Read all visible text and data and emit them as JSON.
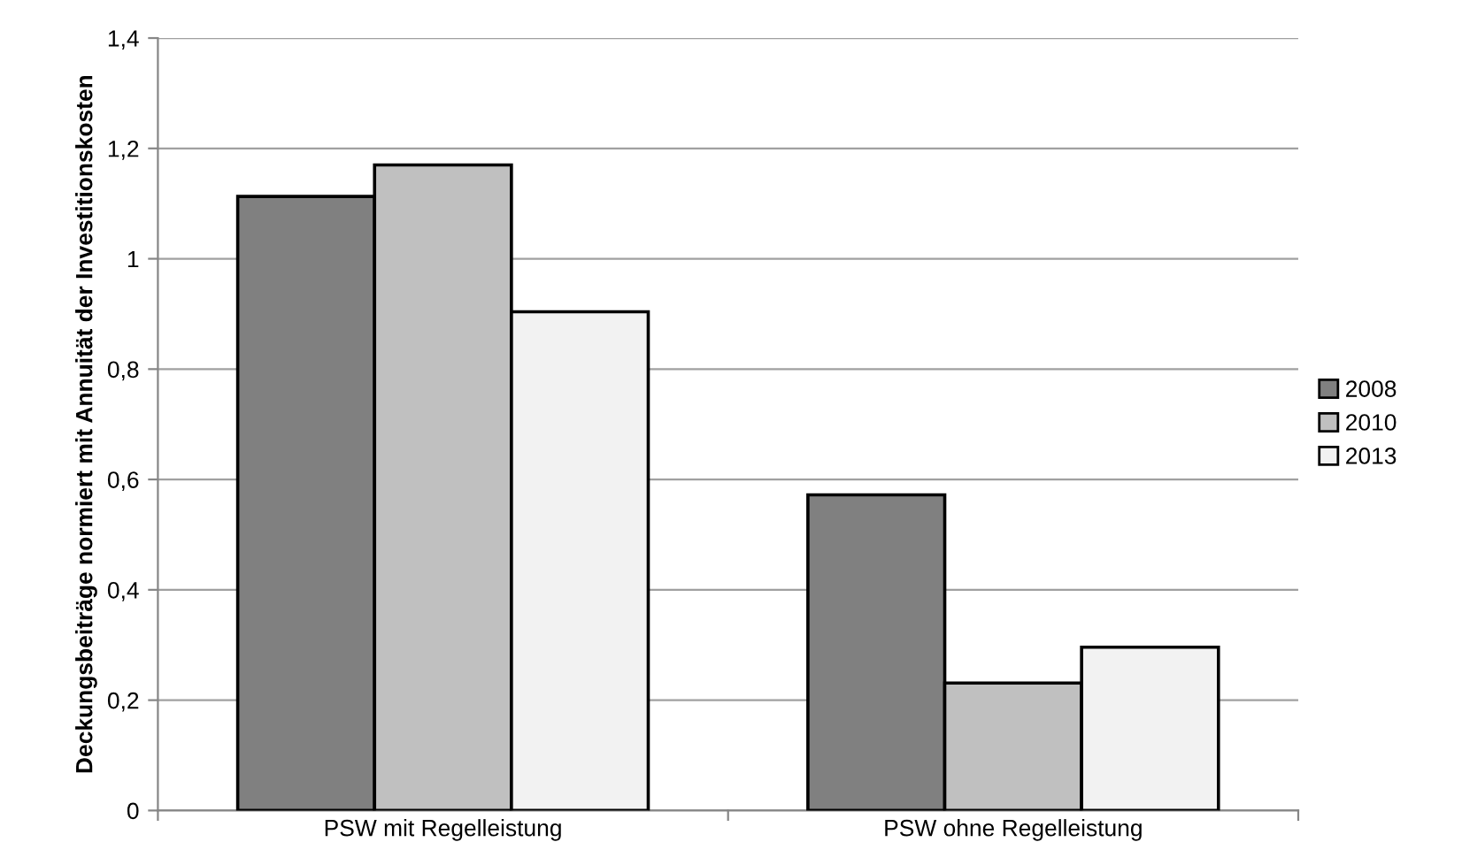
{
  "chart_data": {
    "type": "bar",
    "ylabel": "Deckungsbeiträge normiert mit Annuität der Investitionskosten",
    "categories": [
      "PSW mit Regelleistung",
      "PSW ohne Regelleistung"
    ],
    "series": [
      {
        "name": "2008",
        "color": "#808080",
        "values": [
          1.113,
          0.572
        ]
      },
      {
        "name": "2010",
        "color": "#c0c0c0",
        "values": [
          1.17,
          0.231
        ]
      },
      {
        "name": "2013",
        "color": "#f2f2f2",
        "values": [
          0.904,
          0.296
        ]
      }
    ],
    "ylim": [
      0,
      1.4
    ],
    "yticks": [
      {
        "value": 0,
        "label": "0"
      },
      {
        "value": 0.2,
        "label": "0,2"
      },
      {
        "value": 0.4,
        "label": "0,4"
      },
      {
        "value": 0.6,
        "label": "0,6"
      },
      {
        "value": 0.8,
        "label": "0,8"
      },
      {
        "value": 1,
        "label": "1"
      },
      {
        "value": 1.2,
        "label": "1,2"
      },
      {
        "value": 1.4,
        "label": "1,4"
      }
    ],
    "grid": "y",
    "legend": "right"
  }
}
